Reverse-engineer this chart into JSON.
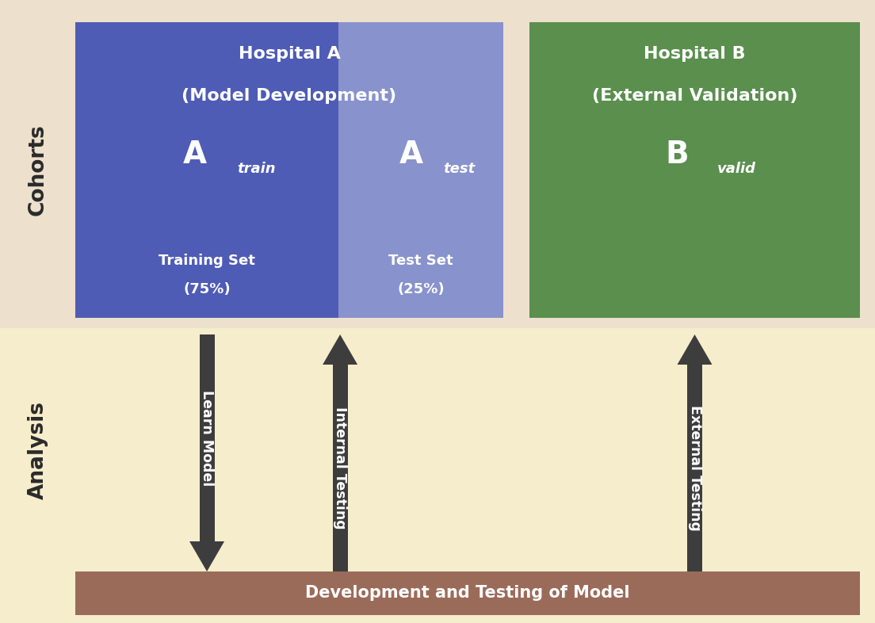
{
  "bg_top_color": "#ede0cc",
  "bg_bottom_color": "#f5edcc",
  "hospital_a_dark_color": "#4f5cb5",
  "hospital_a_light_color": "#8892cc",
  "hospital_b_color": "#5a8f4e",
  "bottom_bar_color": "#9b6b5a",
  "arrow_color": "#3d3d3d",
  "text_white": "#ffffff",
  "text_dark": "#2a2a2a",
  "label_cohorts": "Cohorts",
  "label_analysis": "Analysis",
  "hospital_a_title_line1": "Hospital A",
  "hospital_a_title_line2": "(Model Development)",
  "hospital_b_title_line1": "Hospital B",
  "hospital_b_title_line2": "(External Validation)",
  "a_train_big": "A",
  "a_train_sub": "train",
  "a_train_bottom1": "Training Set",
  "a_train_bottom2": "(75%)",
  "a_test_big": "A",
  "a_test_sub": "test",
  "a_test_bottom1": "Test Set",
  "a_test_bottom2": "(25%)",
  "b_big": "B",
  "b_sub": "valid",
  "arrow1_text": "Learn Model",
  "arrow2_text": "Internal Testing",
  "arrow3_text": "External Testing",
  "bottom_bar_text": "Development and Testing of Model",
  "fig_width": 11.04,
  "fig_height": 7.86,
  "dpi": 100
}
